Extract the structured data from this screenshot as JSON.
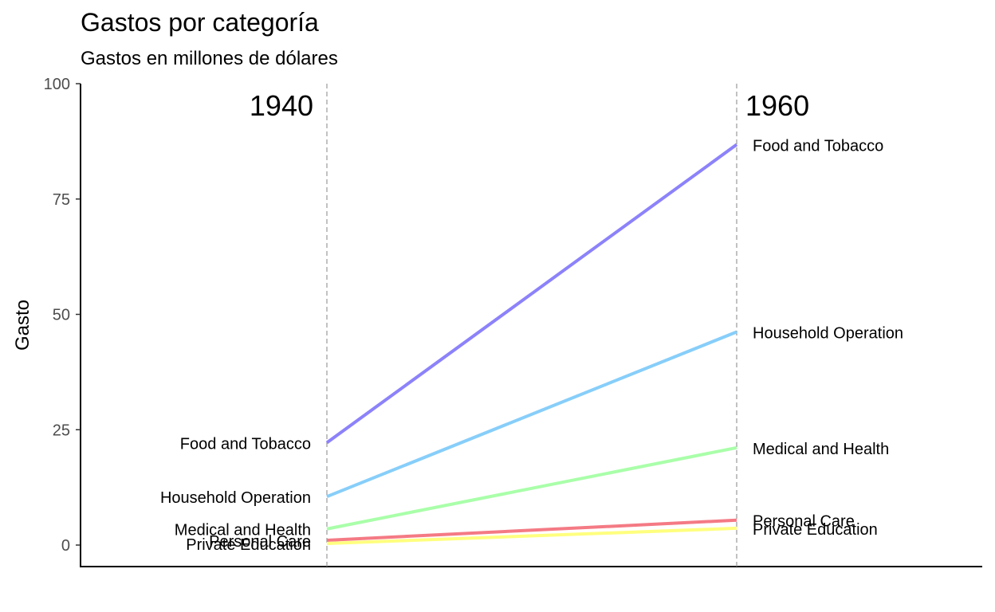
{
  "chart_data": {
    "type": "line",
    "title": "Gastos por categoría",
    "subtitle": "Gastos en millones de dólares",
    "xlabel": "",
    "ylabel": "Gasto",
    "x": [
      "1940",
      "1960"
    ],
    "ylim": [
      0,
      100
    ],
    "yticks": [
      "0",
      "25",
      "50",
      "75",
      "100"
    ],
    "grid": false,
    "legend": "none",
    "series": [
      {
        "name": "Food and Tobacco",
        "values": [
          22.2,
          86.8
        ],
        "color": "#8c82fa"
      },
      {
        "name": "Household Operation",
        "values": [
          10.5,
          46.2
        ],
        "color": "#87cefa"
      },
      {
        "name": "Medical and Health",
        "values": [
          3.5,
          21.1
        ],
        "color": "#a9ffa9"
      },
      {
        "name": "Personal Care",
        "values": [
          1.04,
          5.4
        ],
        "color": "#f47a84"
      },
      {
        "name": "Private Education",
        "values": [
          0.341,
          3.64
        ],
        "color": "#ffff7f"
      }
    ]
  }
}
